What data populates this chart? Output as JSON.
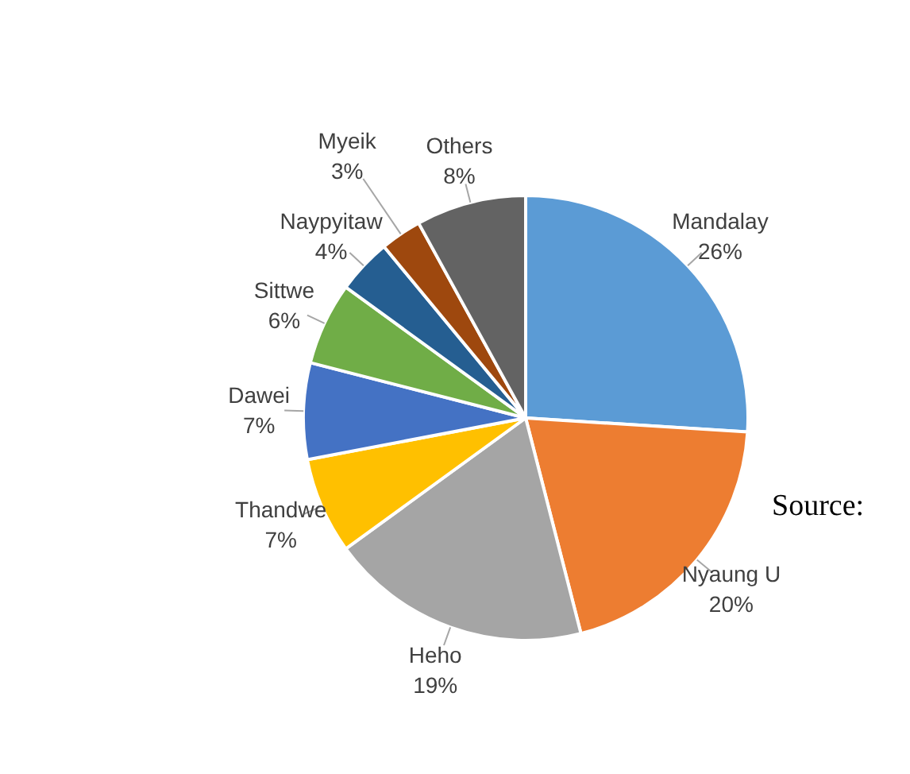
{
  "chart_data": {
    "type": "pie",
    "categories": [
      "Mandalay",
      "Nyaung U",
      "Heho",
      "Thandwe",
      "Dawei",
      "Sittwe",
      "Naypyitaw",
      "Myeik",
      "Others"
    ],
    "values": [
      26,
      20,
      19,
      7,
      7,
      6,
      4,
      3,
      8
    ],
    "value_labels": [
      "26%",
      "20%",
      "19%",
      "7%",
      "7%",
      "6%",
      "4%",
      "3%",
      "8%"
    ],
    "colors": [
      "#5b9bd5",
      "#ed7d31",
      "#a5a5a5",
      "#ffc000",
      "#4472c4",
      "#70ad47",
      "#255e91",
      "#9e480e",
      "#636363"
    ],
    "annotations": [
      "Source:"
    ]
  }
}
